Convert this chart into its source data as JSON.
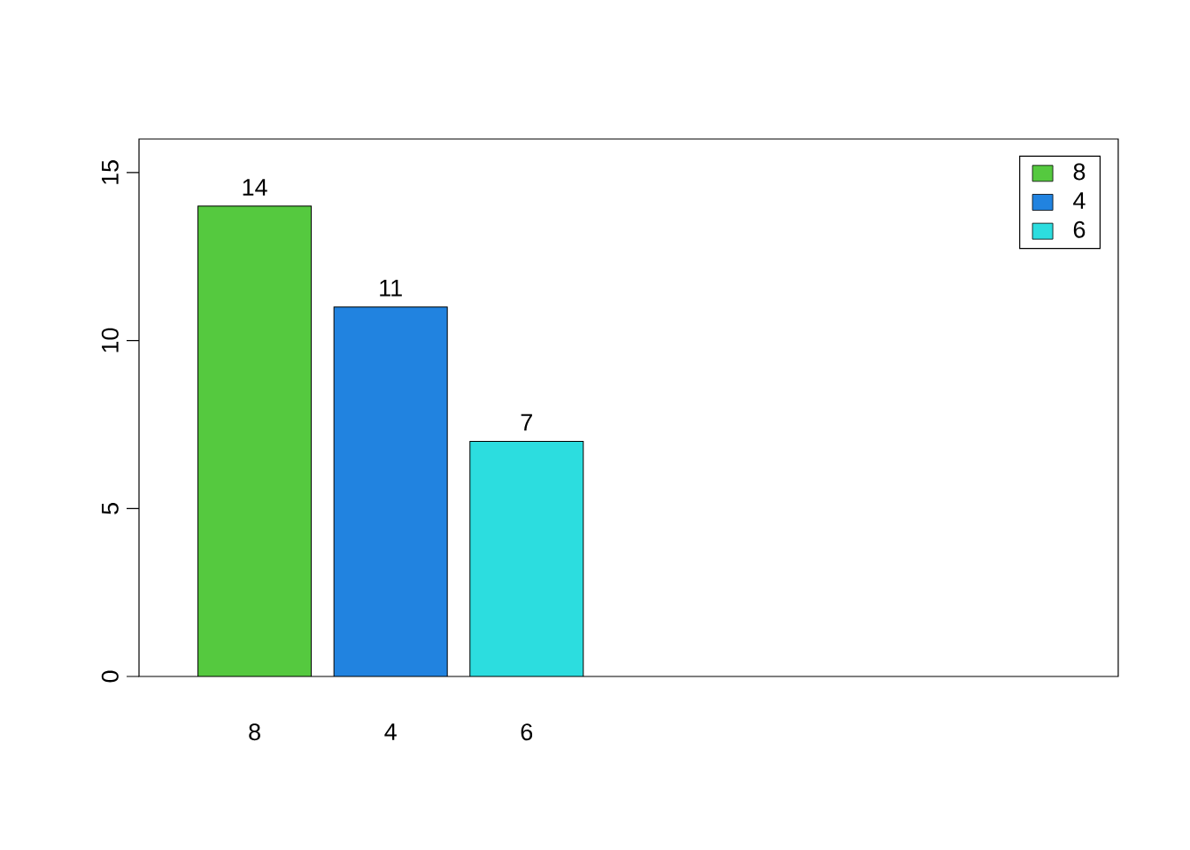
{
  "chart_data": {
    "type": "bar",
    "categories": [
      "8",
      "4",
      "6"
    ],
    "series": [
      {
        "name": "8",
        "color": "#55c93f",
        "values": [
          14,
          null,
          null
        ]
      },
      {
        "name": "4",
        "color": "#2183e0",
        "values": [
          null,
          11,
          null
        ]
      },
      {
        "name": "6",
        "color": "#2cdddf",
        "values": [
          null,
          null,
          7
        ]
      }
    ],
    "ylim": [
      0,
      16
    ],
    "yticks": [
      0,
      5,
      10,
      15
    ],
    "data_labels": true,
    "legend": "top right"
  }
}
